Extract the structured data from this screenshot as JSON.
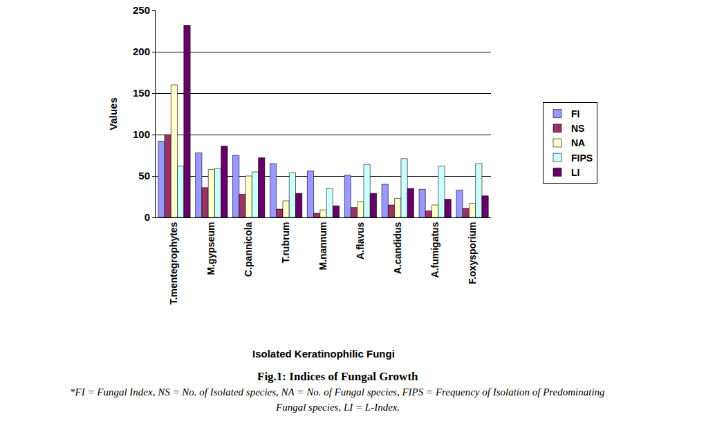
{
  "chart_data": {
    "type": "bar",
    "title": "Fig.1: Indices of Fungal Growth",
    "annotations": [
      "*FI = Fungal Index, NS = No. of Isolated species, NA = No. of Fungal species, FIPS = Frequency of Isolation of Predominating",
      "Fungal species, LI = L-Index."
    ],
    "x_label": "Isolated Keratinophilic Fungi",
    "y_label": "Values",
    "categories": [
      "T.mentegrophytes",
      "M.gypseum",
      "C.pannicola",
      "T.rubrum",
      "M.nannum",
      "A.flavus",
      "A.candidus",
      "A.fumigatus",
      "F.oxysporium"
    ],
    "series": [
      {
        "name": "FI",
        "color": "#9999ff",
        "values": [
          92,
          78,
          75,
          65,
          56,
          51,
          40,
          34,
          33
        ]
      },
      {
        "name": "NS",
        "color": "#993366",
        "values": [
          100,
          36,
          28,
          10,
          5,
          12,
          15,
          8,
          11
        ]
      },
      {
        "name": "NA",
        "color": "#ffffcc",
        "values": [
          160,
          58,
          50,
          20,
          9,
          19,
          23,
          15,
          17
        ]
      },
      {
        "name": "FIPS",
        "color": "#ccffff",
        "values": [
          62,
          59,
          55,
          54,
          35,
          64,
          71,
          62,
          65
        ]
      },
      {
        "name": "LI",
        "color": "#660066",
        "values": [
          232,
          86,
          72,
          29,
          14,
          29,
          35,
          22,
          26
        ]
      }
    ],
    "ylim": [
      0,
      250
    ],
    "yticks": [
      0,
      50,
      100,
      150,
      200,
      250
    ],
    "grid": true,
    "legend": "right"
  }
}
